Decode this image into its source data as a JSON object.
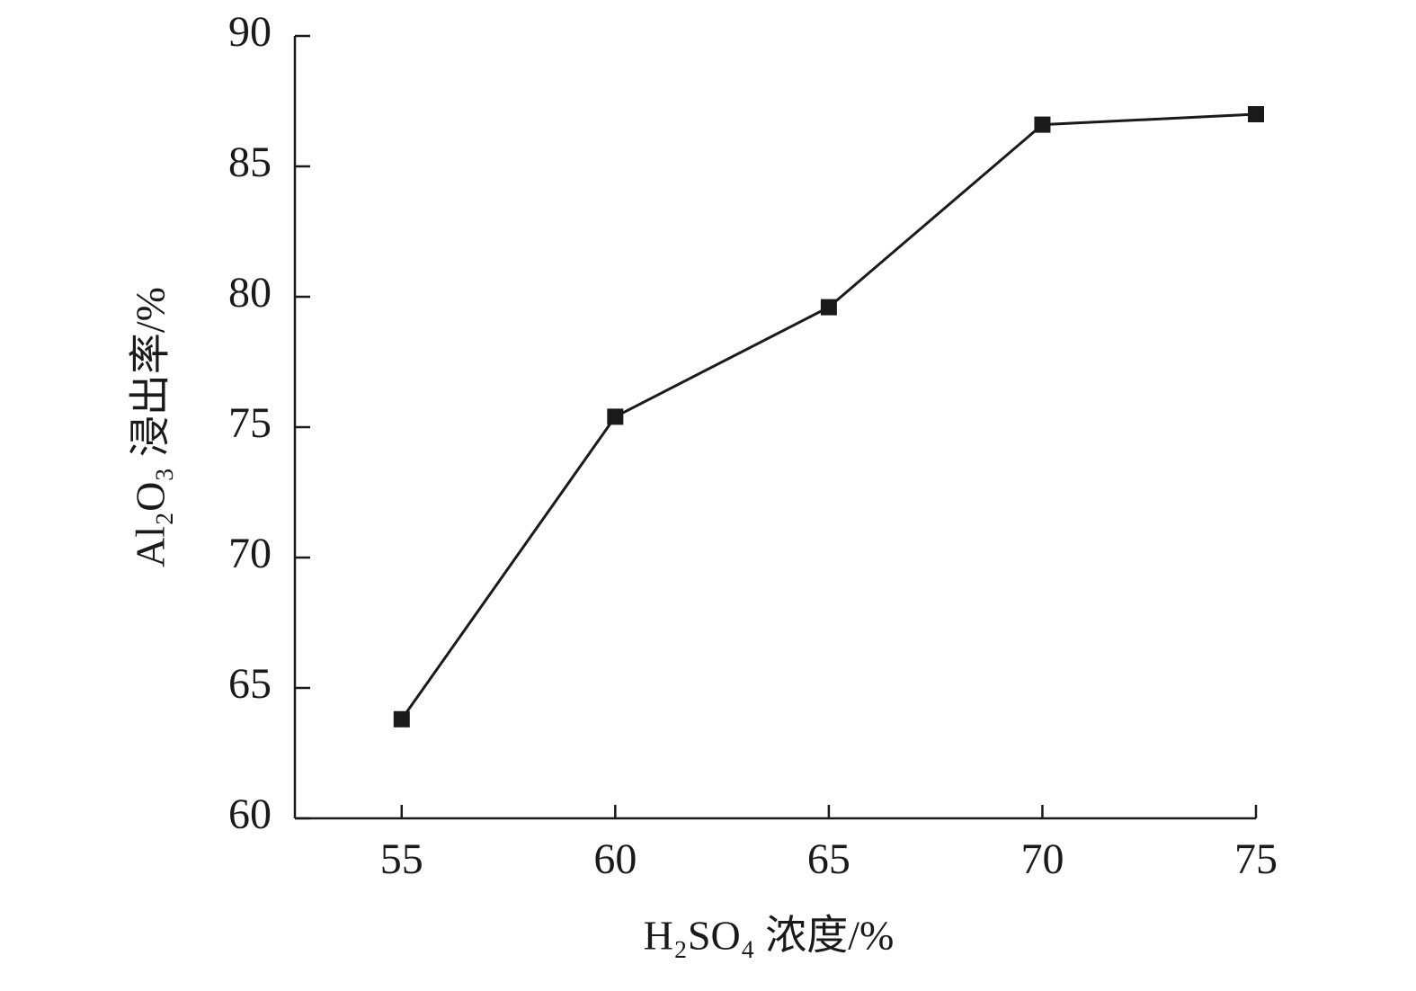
{
  "chart_data": {
    "type": "line",
    "x_label": "H₂SO₄ 浓度/%",
    "y_label": "Al₂O₃ 浸出率/%",
    "x": [
      55,
      60,
      65,
      70,
      75
    ],
    "series": [
      {
        "color": "#1a1a1a",
        "values": [
          63.8,
          75.4,
          79.6,
          86.6,
          87.0
        ]
      }
    ],
    "xlim": [
      52.5,
      75
    ],
    "xticks": [
      55,
      60,
      65,
      70,
      75
    ],
    "ylim": [
      60,
      90
    ],
    "yticks": [
      60,
      65,
      70,
      75,
      80,
      85,
      90
    ],
    "marker": "square",
    "grid": false
  }
}
